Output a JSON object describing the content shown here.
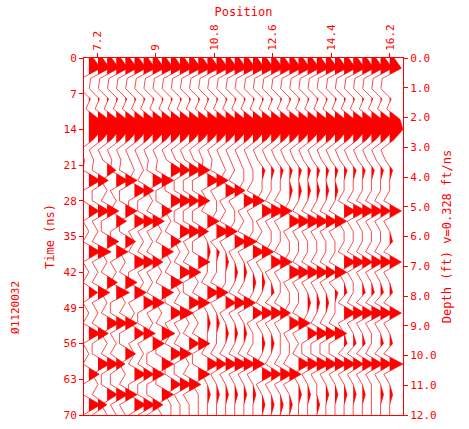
{
  "chart_data": {
    "type": "wiggle",
    "color": "#ff0000",
    "grid": false,
    "x_label": "Position",
    "y_label": "Time (ns)",
    "y2_label": "Depth (ft) v=0.328 ft/ns",
    "annotation": "Ø1120032",
    "xlim": [
      6.8,
      16.6
    ],
    "xticks": [
      7.2,
      9,
      10.8,
      12.6,
      14.4,
      16.2
    ],
    "ylim": [
      0,
      70
    ],
    "yticks": [
      0,
      7,
      14,
      21,
      28,
      35,
      42,
      49,
      56,
      63,
      70
    ],
    "y2lim": [
      0,
      12
    ],
    "y2ticks": [
      {
        "value": 0,
        "label": "0.0"
      },
      {
        "value": 1,
        "label": "1.0"
      },
      {
        "value": 2,
        "label": "2.0"
      },
      {
        "value": 3,
        "label": "3.0"
      },
      {
        "value": 4,
        "label": "4.0"
      },
      {
        "value": 5,
        "label": "5.0"
      },
      {
        "value": 6,
        "label": "6.0"
      },
      {
        "value": 7,
        "label": "7.0"
      },
      {
        "value": 8,
        "label": "8.0"
      },
      {
        "value": 9,
        "label": "9.0"
      },
      {
        "value": 10,
        "label": "10.0"
      },
      {
        "value": 11,
        "label": "11.0"
      },
      {
        "value": 12,
        "label": "12.0"
      }
    ],
    "x": [
      6.95,
      7.23,
      7.51,
      7.79,
      8.07,
      8.35,
      8.63,
      8.91,
      9.19,
      9.47,
      9.75,
      10.03,
      10.31,
      10.59,
      10.87,
      11.15,
      11.43,
      11.71,
      11.99,
      12.27,
      12.55,
      12.83,
      13.11,
      13.39,
      13.67,
      13.95,
      14.23,
      14.51,
      14.79,
      15.07,
      15.35,
      15.63,
      15.91,
      16.19
    ],
    "t": [
      0,
      2,
      4,
      6,
      8,
      10,
      12,
      14,
      16,
      18,
      20,
      22,
      24,
      26,
      28,
      30,
      32,
      34,
      36,
      38,
      40,
      42,
      44,
      46,
      48,
      50,
      52,
      54,
      56,
      58,
      60,
      62,
      64,
      66,
      68,
      70
    ],
    "amplitudes": [
      [
        3,
        8,
        -5,
        -6,
        1,
        -2,
        7,
        9,
        3,
        -6,
        -3,
        -4,
        8,
        -4,
        -4,
        7,
        -4,
        0,
        -4,
        8,
        -4,
        0,
        -4,
        6,
        -4,
        0,
        -4,
        8,
        -4,
        0,
        -4,
        7,
        -4,
        -4,
        8,
        -4
      ],
      [
        3,
        8,
        -5,
        -6,
        1,
        -2,
        7,
        9,
        3,
        -6,
        -3,
        -4,
        7,
        -4,
        -4,
        8,
        -4,
        0,
        -4,
        9,
        -4,
        0,
        -4,
        8,
        -4,
        0,
        -4,
        7,
        -4,
        -4,
        8,
        -4,
        0,
        -4,
        6,
        -4
      ],
      [
        3,
        8,
        -5,
        -6,
        1,
        -2,
        7,
        9,
        3,
        -6,
        -3,
        6,
        -4,
        0,
        -4,
        8,
        -4,
        -4,
        8,
        -4,
        0,
        -4,
        7,
        -4,
        0,
        -4,
        8,
        -4,
        0,
        -4,
        8,
        -4,
        -4,
        7,
        -4,
        0
      ],
      [
        3,
        8,
        -5,
        -6,
        1,
        -2,
        7,
        9,
        3,
        -6,
        -3,
        -4,
        8,
        -4,
        0,
        -4,
        7,
        -4,
        -4,
        8,
        -4,
        0,
        -4,
        9,
        -4,
        -4,
        8,
        -4,
        0,
        -4,
        6,
        -4,
        -4,
        8,
        -4,
        0
      ],
      [
        3,
        8,
        -5,
        -6,
        1,
        -2,
        7,
        9,
        3,
        -6,
        -3,
        -4,
        8,
        -4,
        -4,
        8,
        -4,
        -4,
        7,
        -4,
        0,
        -4,
        8,
        -4,
        0,
        -4,
        8,
        -4,
        -4,
        7,
        -4,
        0,
        -4,
        8,
        -4,
        0
      ],
      [
        3,
        8,
        -5,
        -6,
        1,
        -2,
        7,
        9,
        3,
        -6,
        -3,
        0,
        -4,
        8,
        -4,
        -4,
        8,
        -4,
        0,
        -4,
        9,
        -4,
        -4,
        8,
        -4,
        0,
        -4,
        7,
        -4,
        0,
        -4,
        8,
        -4,
        -4,
        8,
        -4
      ],
      [
        3,
        8,
        -5,
        -6,
        1,
        -2,
        7,
        9,
        3,
        -6,
        -3,
        0,
        -4,
        7,
        -4,
        -4,
        8,
        -4,
        0,
        -4,
        8,
        -4,
        0,
        -4,
        8,
        -4,
        -4,
        8,
        -4,
        0,
        -4,
        7,
        -4,
        -4,
        8,
        -4
      ],
      [
        3,
        8,
        -5,
        -6,
        1,
        -2,
        7,
        9,
        3,
        -6,
        -3,
        -4,
        8,
        -4,
        0,
        -4,
        8,
        -4,
        0,
        -4,
        7,
        -4,
        0,
        -4,
        8,
        -4,
        0,
        -4,
        8,
        -4,
        -4,
        8,
        -4,
        -4,
        7,
        -4
      ],
      [
        3,
        8,
        -5,
        -6,
        1,
        -2,
        7,
        9,
        3,
        -6,
        -3,
        -4,
        8,
        -4,
        -4,
        7,
        -4,
        0,
        -4,
        8,
        -4,
        0,
        -4,
        8,
        -4,
        0,
        -4,
        9,
        -4,
        -4,
        8,
        -4,
        -4,
        8,
        -4,
        0
      ],
      [
        3,
        8,
        -5,
        -6,
        1,
        -2,
        7,
        9,
        3,
        -6,
        -3,
        8,
        -4,
        -4,
        8,
        -4,
        0,
        -4,
        7,
        -4,
        0,
        -4,
        8,
        -4,
        -4,
        8,
        -4,
        0,
        -4,
        8,
        -4,
        -4,
        7,
        -4,
        0,
        0
      ],
      [
        3,
        8,
        -5,
        -6,
        1,
        -2,
        7,
        9,
        3,
        -6,
        -3,
        7,
        -4,
        -4,
        8,
        -4,
        -4,
        8,
        -4,
        0,
        -4,
        8,
        -4,
        0,
        -4,
        9,
        -4,
        0,
        -4,
        8,
        -4,
        -4,
        8,
        -4,
        0,
        0
      ],
      [
        3,
        8,
        -5,
        -6,
        1,
        -2,
        7,
        9,
        3,
        -6,
        -3,
        8,
        -4,
        -4,
        7,
        -4,
        -4,
        8,
        -4,
        0,
        -4,
        8,
        -4,
        -4,
        8,
        -4,
        0,
        -4,
        7,
        -4,
        0,
        -4,
        8,
        -4,
        0,
        0
      ],
      [
        3,
        8,
        -5,
        -6,
        1,
        -2,
        7,
        9,
        3,
        -6,
        -3,
        8,
        -4,
        -4,
        8,
        -4,
        -4,
        7,
        -4,
        -4,
        8,
        -4,
        0,
        -4,
        8,
        -4,
        0,
        -4,
        8,
        -4,
        -4,
        8,
        -4,
        0,
        0,
        0
      ],
      [
        3,
        8,
        -5,
        -6,
        1,
        -2,
        7,
        9,
        3,
        -6,
        -3,
        -4,
        8,
        -4,
        0,
        -4,
        8,
        -4,
        0,
        2,
        0,
        0,
        -4,
        8,
        -4,
        0,
        2,
        0,
        0,
        -4,
        8,
        -4,
        0,
        2,
        0,
        0
      ],
      [
        3,
        8,
        -5,
        -6,
        1,
        -2,
        7,
        9,
        3,
        -6,
        -3,
        -4,
        8,
        -4,
        0,
        0,
        -4,
        9,
        -4,
        2,
        0,
        0,
        -4,
        8,
        -4,
        0,
        2,
        0,
        0,
        -4,
        7,
        -4,
        0,
        2,
        0,
        0
      ],
      [
        3,
        8,
        -5,
        -6,
        1,
        -2,
        7,
        9,
        3,
        -6,
        -3,
        0,
        -4,
        8,
        -4,
        0,
        -4,
        8,
        -4,
        0,
        2,
        0,
        0,
        -4,
        7,
        -4,
        0,
        2,
        0,
        -4,
        8,
        -4,
        0,
        2,
        0,
        0
      ],
      [
        3,
        8,
        -5,
        -6,
        1,
        -2,
        7,
        9,
        3,
        -6,
        -3,
        0,
        -4,
        7,
        -4,
        0,
        0,
        -4,
        8,
        -4,
        0,
        2,
        0,
        -4,
        8,
        -4,
        0,
        2,
        0,
        -4,
        9,
        -4,
        0,
        2,
        0,
        0
      ],
      [
        3,
        8,
        -5,
        -6,
        1,
        -2,
        7,
        9,
        3,
        -6,
        -3,
        0,
        0,
        -4,
        8,
        -4,
        0,
        -4,
        9,
        -4,
        0,
        2,
        0,
        -4,
        8,
        -4,
        0,
        2,
        0,
        -4,
        8,
        -4,
        0,
        2,
        0,
        0
      ],
      [
        3,
        8,
        -5,
        -6,
        1,
        -2,
        7,
        9,
        3,
        -6,
        -3,
        0,
        0,
        -4,
        8,
        -4,
        0,
        0,
        -4,
        8,
        -4,
        0,
        2,
        0,
        -4,
        7,
        -4,
        0,
        0,
        -4,
        8,
        -4,
        0,
        2,
        0,
        0
      ],
      [
        3,
        8,
        -5,
        -6,
        1,
        -2,
        7,
        9,
        3,
        -6,
        -3,
        2,
        0,
        0,
        -4,
        8,
        -4,
        0,
        -4,
        8,
        -4,
        0,
        2,
        0,
        -4,
        8,
        -4,
        0,
        2,
        0,
        -4,
        8,
        -4,
        0,
        2,
        0
      ],
      [
        3,
        8,
        -5,
        -6,
        1,
        -2,
        7,
        9,
        3,
        -6,
        -3,
        2,
        0,
        0,
        -4,
        9,
        -4,
        0,
        0,
        -4,
        8,
        -4,
        0,
        2,
        -4,
        8,
        -4,
        0,
        2,
        0,
        -4,
        7,
        -4,
        0,
        2,
        0
      ],
      [
        3,
        8,
        -5,
        -6,
        1,
        -2,
        7,
        9,
        3,
        -6,
        -3,
        2,
        0,
        0,
        -4,
        8,
        -4,
        0,
        0,
        -4,
        8,
        -4,
        0,
        0,
        -4,
        7,
        -4,
        0,
        0,
        0,
        -4,
        8,
        -4,
        0,
        2,
        0
      ],
      [
        3,
        8,
        -5,
        -6,
        1,
        -2,
        7,
        9,
        3,
        -6,
        -3,
        2,
        0,
        2,
        0,
        -4,
        8,
        -4,
        0,
        0,
        -4,
        9,
        -4,
        0,
        0,
        -4,
        8,
        -4,
        0,
        0,
        -4,
        8,
        -4,
        0,
        2,
        0
      ],
      [
        3,
        8,
        -5,
        -6,
        1,
        -2,
        7,
        9,
        3,
        -6,
        -3,
        2,
        0,
        2,
        0,
        -4,
        8,
        -4,
        0,
        0,
        -4,
        8,
        -4,
        0,
        0,
        -4,
        8,
        -4,
        0,
        -4,
        8,
        -4,
        0,
        2,
        0,
        0
      ],
      [
        3,
        8,
        -5,
        -6,
        1,
        -2,
        7,
        9,
        3,
        -6,
        -3,
        2,
        0,
        2,
        0,
        -4,
        9,
        -4,
        0,
        0,
        -4,
        8,
        -4,
        0,
        2,
        0,
        -4,
        7,
        -4,
        -4,
        8,
        -4,
        0,
        2,
        0,
        0
      ],
      [
        3,
        8,
        -5,
        -6,
        1,
        -2,
        7,
        9,
        3,
        -6,
        -3,
        2,
        0,
        2,
        0,
        -4,
        8,
        -4,
        0,
        0,
        -4,
        8,
        -4,
        0,
        2,
        0,
        -4,
        8,
        -4,
        -4,
        9,
        -4,
        0,
        0,
        2,
        0
      ],
      [
        3,
        8,
        -5,
        -6,
        1,
        -2,
        7,
        9,
        3,
        -6,
        -3,
        2,
        0,
        2,
        0,
        -4,
        8,
        -4,
        0,
        0,
        -4,
        7,
        -4,
        0,
        2,
        0,
        -4,
        8,
        -4,
        -4,
        8,
        -4,
        0,
        2,
        0,
        0
      ],
      [
        3,
        8,
        -5,
        -6,
        1,
        -2,
        7,
        9,
        3,
        -6,
        -3,
        2,
        0,
        2,
        0,
        -4,
        8,
        -4,
        0,
        0,
        -4,
        8,
        -4,
        2,
        0,
        0,
        -4,
        8,
        -4,
        -4,
        8,
        -4,
        0,
        2,
        0,
        0
      ],
      [
        3,
        8,
        -5,
        -6,
        1,
        -2,
        7,
        9,
        3,
        -6,
        -3,
        2,
        0,
        0,
        -4,
        8,
        -4,
        0,
        0,
        -4,
        8,
        -4,
        0,
        2,
        -4,
        8,
        -4,
        0,
        2,
        -4,
        8,
        -4,
        0,
        2,
        0,
        0
      ],
      [
        3,
        8,
        -5,
        -6,
        1,
        -2,
        7,
        9,
        3,
        -6,
        -3,
        2,
        0,
        0,
        -4,
        9,
        -4,
        0,
        0,
        -4,
        8,
        -4,
        0,
        0,
        -4,
        8,
        -4,
        0,
        2,
        -4,
        7,
        -4,
        0,
        2,
        0,
        0
      ],
      [
        3,
        8,
        -5,
        -6,
        1,
        -2,
        7,
        9,
        3,
        -6,
        -3,
        2,
        0,
        0,
        -4,
        8,
        -4,
        0,
        0,
        -4,
        7,
        -4,
        0,
        2,
        -4,
        8,
        -4,
        0,
        2,
        -4,
        8,
        -4,
        0,
        2,
        0,
        0
      ],
      [
        3,
        8,
        -5,
        -6,
        1,
        -2,
        7,
        9,
        3,
        -6,
        -3,
        2,
        0,
        0,
        -4,
        8,
        -4,
        0,
        0,
        -4,
        8,
        -4,
        0,
        2,
        -4,
        9,
        -4,
        0,
        0,
        -4,
        8,
        -4,
        0,
        0,
        0,
        0
      ],
      [
        3,
        8,
        -5,
        -6,
        1,
        -2,
        7,
        9,
        3,
        -6,
        -3,
        2,
        0,
        0,
        -4,
        7,
        -4,
        0,
        0,
        -4,
        8,
        -4,
        0,
        2,
        -4,
        8,
        -4,
        0,
        2,
        -4,
        8,
        -4,
        0,
        2,
        0,
        0
      ],
      [
        3,
        8,
        -5,
        -6,
        1,
        -2,
        7,
        9,
        3,
        -6,
        -3,
        2,
        0,
        0,
        -4,
        8,
        -4,
        0,
        2,
        -4,
        8,
        -4,
        0,
        2,
        -4,
        8,
        -4,
        0,
        2,
        -4,
        9,
        -4,
        0,
        2,
        0,
        0
      ]
    ]
  }
}
